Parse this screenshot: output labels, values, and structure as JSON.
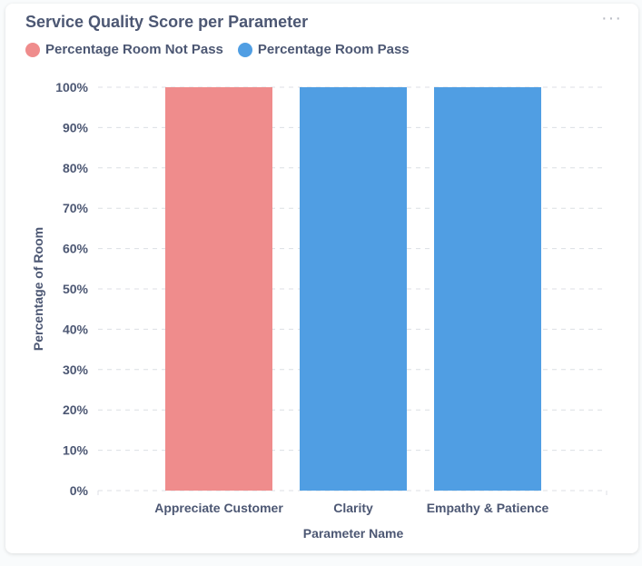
{
  "card": {
    "title": "Service Quality Score per Parameter",
    "more_label": "···"
  },
  "colors": {
    "not_pass": "#ef8c8c",
    "pass": "#509ee3",
    "text": "#4c5773",
    "grid": "#dcdfe4"
  },
  "chart_data": {
    "type": "bar",
    "stacked": true,
    "title": "Service Quality Score per Parameter",
    "xlabel": "Parameter Name",
    "ylabel": "Percentage of Room",
    "categories": [
      "Appreciate Customer",
      "Clarity",
      "Empathy & Patience"
    ],
    "series": [
      {
        "name": "Percentage Room Not Pass",
        "color": "#ef8c8c",
        "values": [
          100,
          0,
          0
        ]
      },
      {
        "name": "Percentage Room Pass",
        "color": "#509ee3",
        "values": [
          0,
          100,
          100
        ]
      }
    ],
    "ylim": [
      0,
      100
    ],
    "yticks": [
      "0%",
      "10%",
      "20%",
      "30%",
      "40%",
      "50%",
      "60%",
      "70%",
      "80%",
      "90%",
      "100%"
    ],
    "grid": true,
    "legend": "top-left"
  }
}
